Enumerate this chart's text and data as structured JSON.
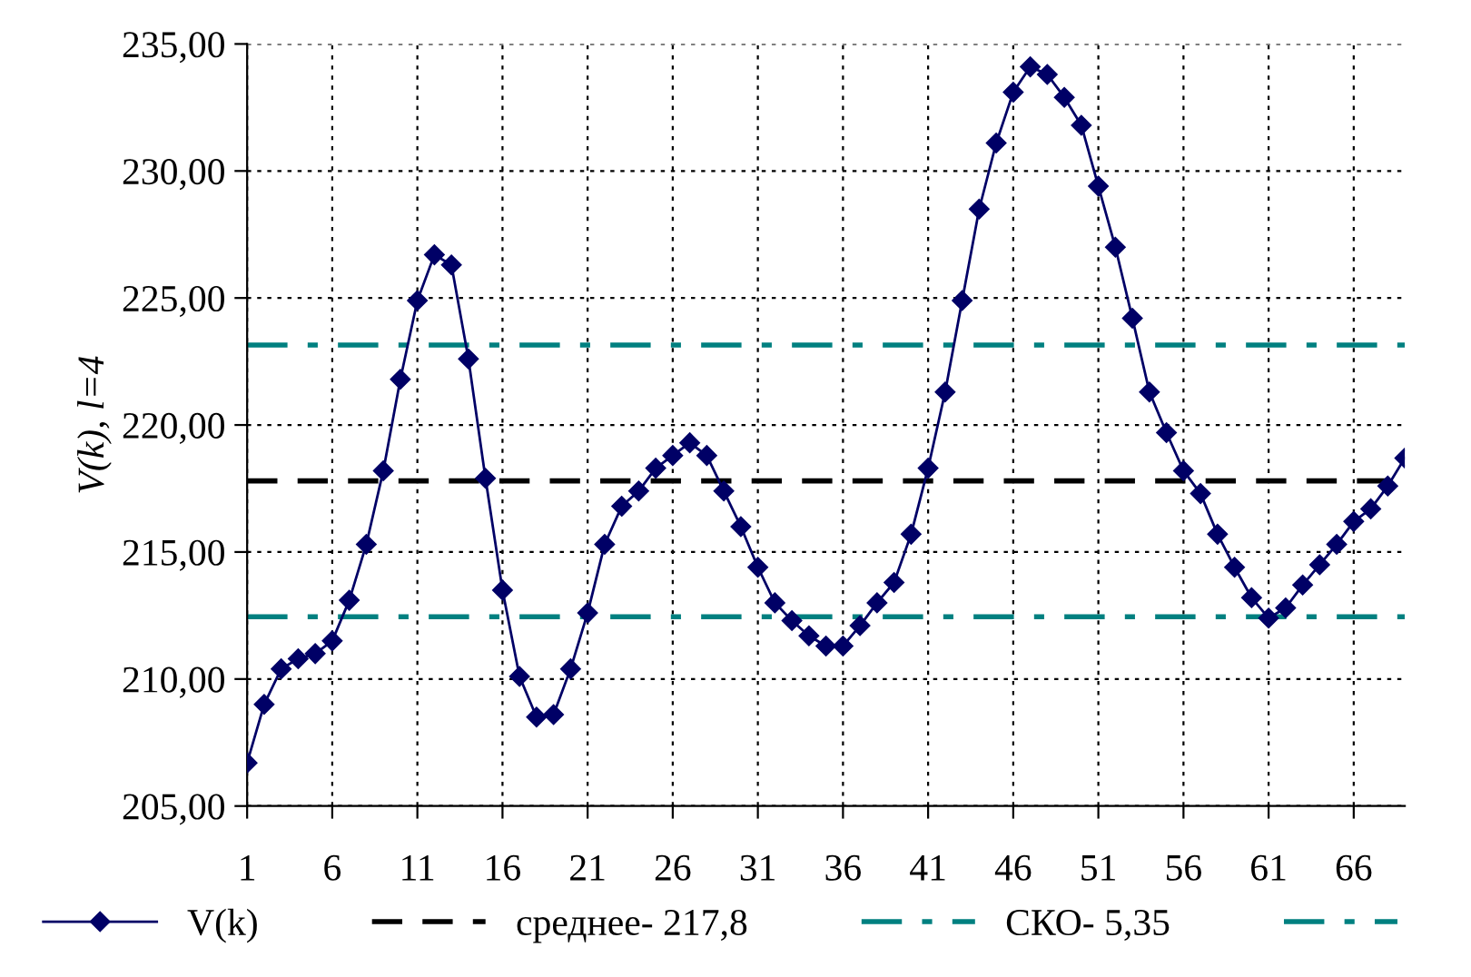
{
  "chart_data": {
    "type": "line",
    "ylabel": "V(k), l=4",
    "categories": [
      "1",
      null,
      null,
      null,
      null,
      "6",
      null,
      null,
      null,
      null,
      "11",
      null,
      null,
      null,
      null,
      "16",
      null,
      null,
      null,
      null,
      "21",
      null,
      null,
      null,
      null,
      "26",
      null,
      null,
      null,
      null,
      "31",
      null,
      null,
      null,
      null,
      "36",
      null,
      null,
      null,
      null,
      "41",
      null,
      null,
      null,
      null,
      "46",
      null,
      null,
      null,
      null,
      "51",
      null,
      null,
      null,
      null,
      "56",
      null,
      null,
      null,
      null,
      "61",
      null,
      null,
      null,
      null,
      "66",
      null,
      null,
      null
    ],
    "series": [
      {
        "name": "V(k)",
        "color": "#000066",
        "values": [
          206.7,
          209.0,
          210.4,
          210.8,
          211.0,
          211.5,
          213.1,
          215.3,
          218.2,
          221.8,
          224.9,
          226.7,
          226.3,
          222.6,
          217.9,
          213.5,
          210.1,
          208.5,
          208.6,
          210.4,
          212.6,
          215.3,
          216.8,
          217.4,
          218.3,
          218.8,
          219.3,
          218.8,
          217.4,
          216.0,
          214.4,
          213.0,
          212.3,
          211.7,
          211.3,
          211.3,
          212.1,
          213.0,
          213.8,
          215.7,
          218.3,
          221.3,
          224.9,
          228.5,
          231.1,
          233.1,
          234.1,
          233.8,
          232.9,
          231.8,
          229.4,
          227.0,
          224.2,
          221.3,
          219.7,
          218.2,
          217.3,
          215.7,
          214.4,
          213.2,
          212.4,
          212.8,
          213.7,
          214.5,
          215.3,
          216.2,
          216.7,
          217.6,
          218.7
        ]
      }
    ],
    "marker": "diamond",
    "line_style": "solid",
    "ylim": [
      205,
      235
    ],
    "yticks": [
      {
        "value": 205,
        "label": "205,00"
      },
      {
        "value": 210,
        "label": "210,00"
      },
      {
        "value": 215,
        "label": "215,00"
      },
      {
        "value": 220,
        "label": "220,00"
      },
      {
        "value": 225,
        "label": "225,00"
      },
      {
        "value": 230,
        "label": "230,00"
      },
      {
        "value": 235,
        "label": "235,00"
      }
    ],
    "ref_lines": [
      {
        "axis": "y",
        "value": 217.8,
        "label": "среднее- 217,8",
        "color": "#000000",
        "line_style": "dashed"
      },
      {
        "axis": "y",
        "value": 223.15,
        "label": "СКО- 5,35",
        "color": "#008080",
        "line_style": "dashdot"
      },
      {
        "axis": "y",
        "value": 212.45,
        "label": null,
        "color": "#008080",
        "line_style": "dashdot"
      }
    ],
    "grid": true,
    "legend": "bottom"
  }
}
